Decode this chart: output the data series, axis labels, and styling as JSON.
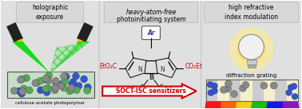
{
  "title_left": "holographic\nexposure",
  "title_middle": "heavy-atom-free\nphotoinitiating system",
  "title_right": "high refractive\nindex modulation",
  "caption_left": "cellulose acetate photopolymer",
  "caption_right": "diffraction grating",
  "arrow_label": "SOCT-ISC sensitizers",
  "arrow_color": "#cc0000",
  "polymer_blue": "#3355cc",
  "polymer_gray": "#888888",
  "polymer_green": "#55aa55",
  "beam_green": "#00dd00",
  "beam_hatch_green": "#88ee88",
  "panel_bg": "#e0e0e0",
  "laser_body": "#222222",
  "laser_gold": "#ffcc00",
  "bodipy_red": "#cc0000",
  "spectrum_colors": [
    "#ff0000",
    "#ff5500",
    "#ffcc00",
    "#00bb00",
    "#0000ee",
    "#8800bb"
  ],
  "grating_yellow": "#f5f0cc",
  "grating_gray": "#cccccc",
  "bulb_glow": "#ffee88",
  "bulb_body": "#f0f0f0"
}
